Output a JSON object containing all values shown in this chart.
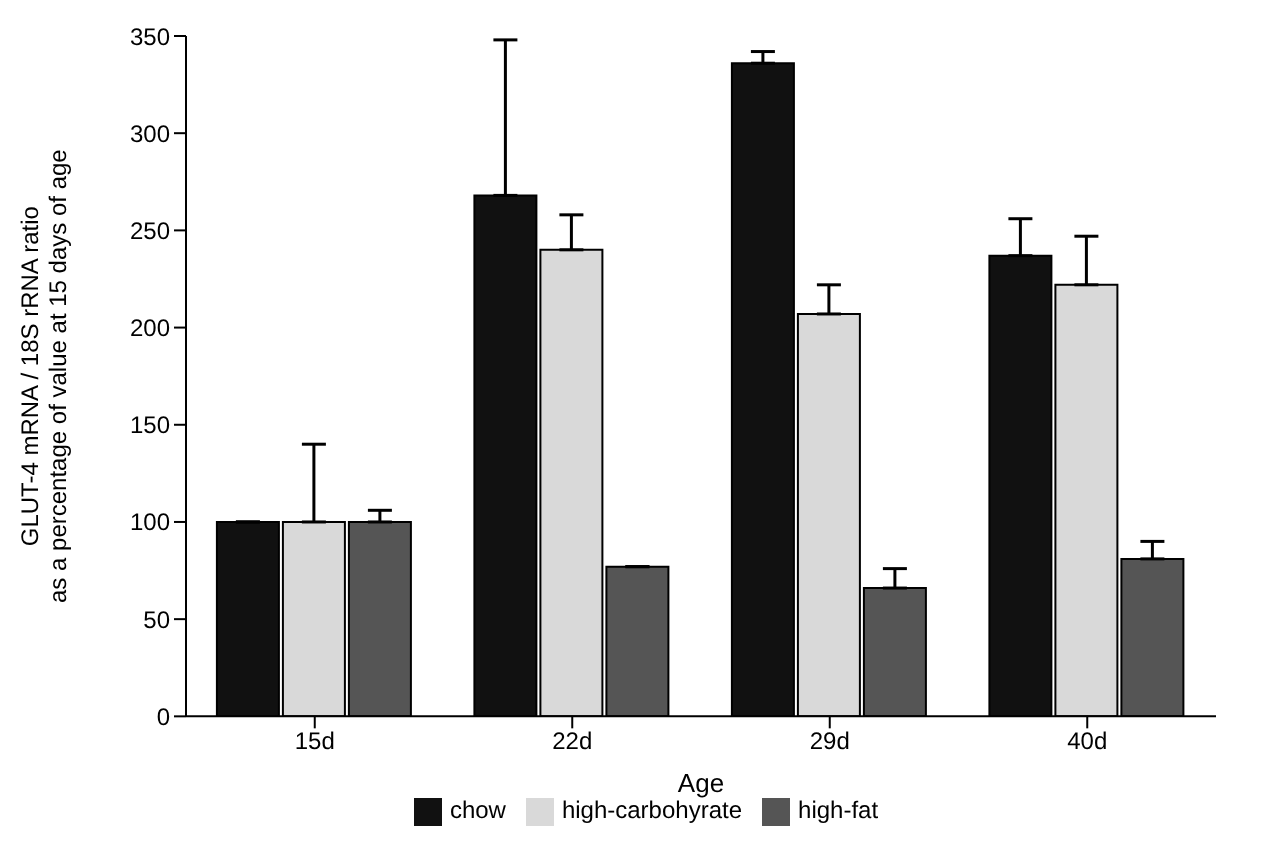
{
  "chart_data": {
    "type": "bar",
    "xlabel": "Age",
    "ylabel": "GLUT-4 mRNA / 18S rRNA ratio\nas a percentage of value at 15 days of age",
    "categories": [
      "15d",
      "22d",
      "29d",
      "40d"
    ],
    "series": [
      {
        "name": "chow",
        "color": "#111111",
        "values": [
          100,
          268,
          336,
          237
        ],
        "errors": [
          null,
          [
            268,
            348
          ],
          [
            336,
            342
          ],
          [
            237,
            256
          ]
        ]
      },
      {
        "name": "high-carbohyrate",
        "color": "#d9d9d9",
        "values": [
          100,
          240,
          207,
          222
        ],
        "errors": [
          [
            100,
            140
          ],
          [
            240,
            258
          ],
          [
            207,
            222
          ],
          [
            222,
            247
          ]
        ]
      },
      {
        "name": "high-fat",
        "color": "#555555",
        "values": [
          100,
          77,
          66,
          81
        ],
        "errors": [
          [
            100,
            106
          ],
          null,
          [
            66,
            76
          ],
          [
            81,
            90
          ]
        ]
      }
    ],
    "ylim": [
      0,
      350
    ],
    "yticks": [
      0,
      50,
      100,
      150,
      200,
      250,
      300,
      350
    ],
    "grid": false,
    "legend": "bottom"
  }
}
